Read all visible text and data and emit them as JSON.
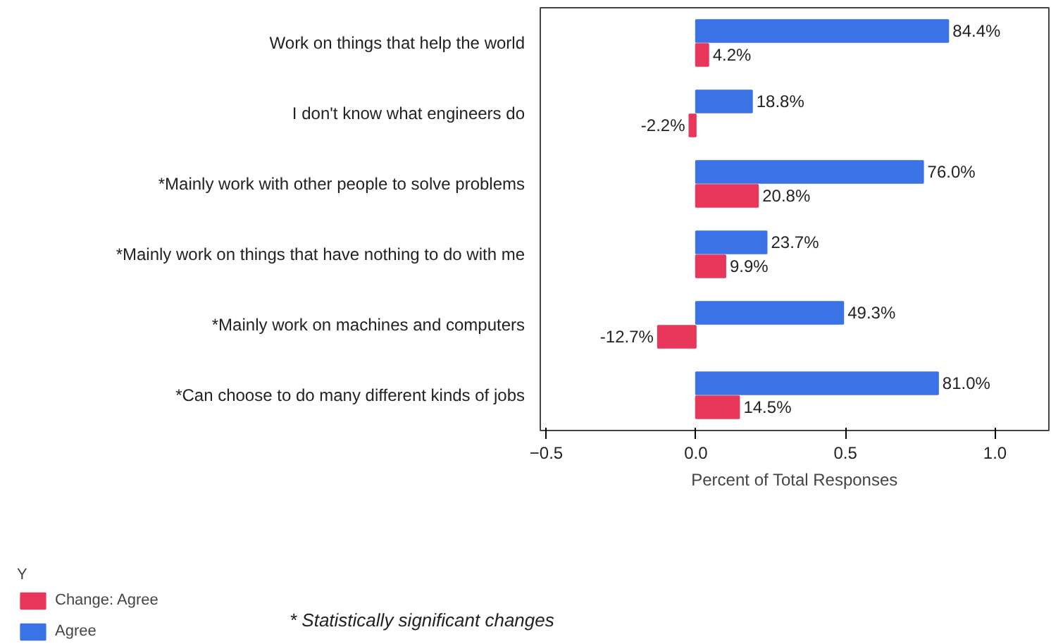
{
  "chart_data": {
    "type": "bar",
    "orientation": "horizontal",
    "xlabel": "Percent of Total Responses",
    "legend_title": "Y",
    "legend": "bottom left",
    "grid": false,
    "categories": [
      "Work on things that help the world",
      "I don't know what engineers do",
      "*Mainly work with other people to solve problems",
      "*Mainly work on things that have nothing to do with me",
      "*Mainly work on machines and computers",
      "*Can choose to do many different kinds of jobs"
    ],
    "series": [
      {
        "name": "Change: Agree",
        "color": "#e8375a",
        "values": [
          0.042,
          -0.022,
          0.208,
          0.099,
          -0.127,
          0.145
        ],
        "value_labels": [
          "4.2%",
          "-2.2%",
          "20.8%",
          "9.9%",
          "-12.7%",
          "14.5%"
        ]
      },
      {
        "name": "Agree",
        "color": "#3b73e6",
        "values": [
          0.844,
          0.188,
          0.76,
          0.237,
          0.493,
          0.81
        ],
        "value_labels": [
          "84.4%",
          "18.8%",
          "76.0%",
          "23.7%",
          "49.3%",
          "81.0%"
        ]
      }
    ],
    "xlim": [
      -0.52,
      1.18
    ],
    "xticks": [
      -0.5,
      {
        "value": 0,
        "label": "0.0"
      },
      0.5,
      {
        "value": 1,
        "label": "1.0"
      }
    ],
    "annotations": [
      "* Statistically significant changes"
    ]
  }
}
